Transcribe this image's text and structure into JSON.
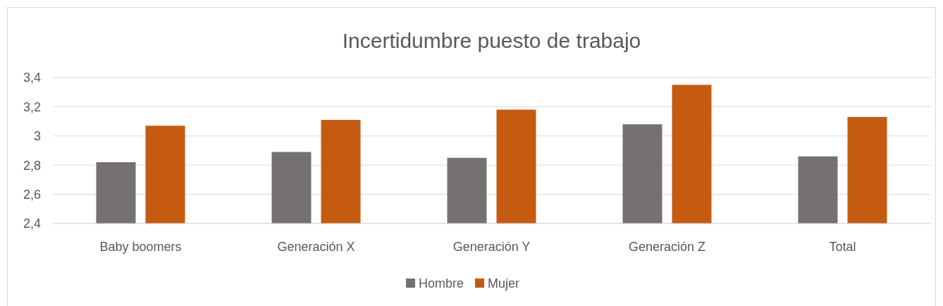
{
  "chart_data": {
    "type": "bar",
    "title": "Incertidumbre puesto de trabajo",
    "categories": [
      "Baby boomers",
      "Generación X",
      "Generación Y",
      "Generación Z",
      "Total"
    ],
    "series": [
      {
        "name": "Hombre",
        "color": "#767171",
        "values": [
          2.82,
          2.89,
          2.85,
          3.08,
          2.86
        ]
      },
      {
        "name": "Mujer",
        "color": "#c55a11",
        "values": [
          3.07,
          3.11,
          3.18,
          3.35,
          3.13
        ]
      }
    ],
    "ylim": [
      2.4,
      3.4
    ],
    "yticks": [
      {
        "value": 2.4,
        "label": "2,4"
      },
      {
        "value": 2.6,
        "label": "2,6"
      },
      {
        "value": 2.8,
        "label": "2,8"
      },
      {
        "value": 3,
        "label": "3"
      },
      {
        "value": 3.2,
        "label": "3,2"
      },
      {
        "value": 3.4,
        "label": "3,4"
      }
    ],
    "grid": "y",
    "legend": "bottom"
  }
}
